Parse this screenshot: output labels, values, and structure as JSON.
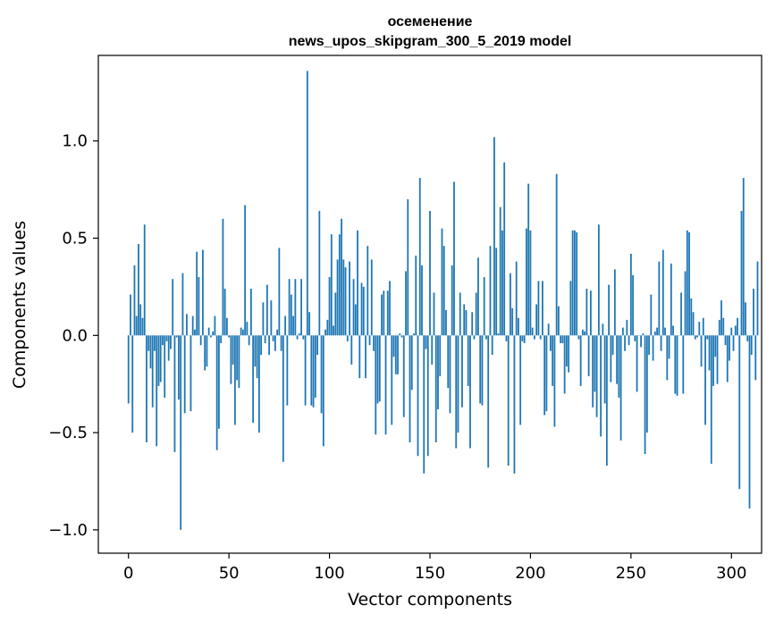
{
  "chart_data": {
    "type": "bar",
    "title": "осеменение",
    "subtitle": "news_upos_skipgram_300_5_2019 model",
    "xlabel": "Vector components",
    "ylabel": "Components values",
    "xlim": [
      -15,
      315
    ],
    "ylim": [
      -1.12,
      1.44
    ],
    "x_ticks": [
      0,
      50,
      100,
      150,
      200,
      250,
      300
    ],
    "x_tick_labels": [
      "0",
      "50",
      "100",
      "150",
      "200",
      "250",
      "300"
    ],
    "y_ticks": [
      -1.0,
      -0.5,
      0.0,
      0.5,
      1.0
    ],
    "y_tick_labels": [
      "−1.0",
      "−0.5",
      "0.0",
      "0.5",
      "1.0"
    ],
    "grid": false,
    "legend": "none",
    "bar_color": "#1f77b4",
    "values": [
      -0.35,
      0.21,
      -0.5,
      0.36,
      0.1,
      0.47,
      0.16,
      0.09,
      0.57,
      -0.55,
      -0.08,
      -0.17,
      -0.37,
      -0.08,
      -0.57,
      -0.26,
      -0.24,
      -0.05,
      -0.32,
      -0.03,
      -0.13,
      -0.07,
      0.29,
      -0.6,
      -0.01,
      -0.33,
      -1.0,
      0.32,
      -0.4,
      0.11,
      0.0,
      -0.39,
      0.1,
      0.03,
      0.43,
      0.3,
      -0.05,
      0.44,
      -0.18,
      -0.16,
      0.04,
      -0.01,
      0.02,
      0.1,
      -0.59,
      -0.48,
      -0.04,
      0.6,
      0.24,
      0.09,
      -0.01,
      -0.25,
      -0.15,
      -0.46,
      -0.23,
      -0.27,
      0.04,
      0.03,
      0.67,
      0.07,
      -0.05,
      0.24,
      -0.45,
      -0.16,
      -0.22,
      -0.5,
      -0.1,
      0.17,
      -0.04,
      0.26,
      -0.1,
      0.18,
      -0.03,
      -0.08,
      0.03,
      0.45,
      -0.08,
      -0.65,
      0.1,
      -0.36,
      0.29,
      0.21,
      0.1,
      0.29,
      -0.02,
      0.01,
      0.29,
      -0.02,
      -0.36,
      1.36,
      0.12,
      -0.36,
      -0.37,
      -0.32,
      -0.1,
      0.64,
      -0.4,
      -0.57,
      0.03,
      0.08,
      0.3,
      0.52,
      0.05,
      0.22,
      0.39,
      0.52,
      0.6,
      0.39,
      0.35,
      -0.03,
      0.38,
      -0.15,
      0.29,
      0.16,
      0.54,
      -0.22,
      0.27,
      0.25,
      -0.22,
      0.46,
      -0.05,
      0.39,
      -0.08,
      -0.51,
      -0.35,
      -0.34,
      0.21,
      0.23,
      -0.51,
      0.23,
      0.28,
      -0.46,
      -0.11,
      -0.2,
      -0.2,
      0.01,
      -0.01,
      -0.42,
      0.33,
      0.7,
      -0.55,
      -0.28,
      0.01,
      0.41,
      -0.62,
      0.81,
      0.36,
      -0.71,
      -0.07,
      -0.62,
      0.64,
      -0.15,
      0.22,
      -0.55,
      -0.38,
      -0.21,
      0.55,
      0.46,
      0.13,
      -0.27,
      -0.4,
      0.36,
      0.79,
      -0.58,
      -0.5,
      0.22,
      -0.37,
      0.16,
      0.13,
      -0.26,
      -0.58,
      0.12,
      -0.02,
      0.22,
      0.4,
      -0.35,
      -0.36,
      0.3,
      -0.02,
      -0.68,
      0.46,
      -0.1,
      1.02,
      0.45,
      0.01,
      0.66,
      0.54,
      0.89,
      -0.03,
      -0.67,
      0.32,
      0.14,
      -0.71,
      0.38,
      0.09,
      -0.46,
      -0.03,
      -0.04,
      0.55,
      0.78,
      0.54,
      0.04,
      -0.02,
      0.16,
      0.28,
      -0.02,
      0.28,
      -0.41,
      -0.39,
      0.06,
      -0.08,
      -0.26,
      -0.47,
      0.83,
      0.15,
      -0.04,
      -0.04,
      -0.3,
      -0.16,
      -0.19,
      0.28,
      0.54,
      0.54,
      0.53,
      -0.02,
      -0.26,
      0.03,
      0.02,
      0.24,
      -0.21,
      0.23,
      -0.37,
      -0.29,
      -0.42,
      0.57,
      -0.52,
      0.06,
      -0.35,
      -0.67,
      0.26,
      -0.24,
      -0.1,
      0.34,
      -0.25,
      -0.32,
      -0.54,
      0.04,
      -0.08,
      0.08,
      -0.05,
      0.42,
      0.31,
      -0.03,
      -0.29,
      0.0,
      -0.06,
      0.01,
      -0.61,
      -0.5,
      -0.1,
      0.21,
      -0.13,
      0.02,
      0.04,
      0.38,
      -0.08,
      0.44,
      0.04,
      -0.23,
      -0.12,
      0.37,
      0.05,
      -0.3,
      -0.31,
      0.0,
      0.22,
      -0.3,
      0.33,
      0.54,
      0.53,
      0.19,
      0.12,
      -0.02,
      -0.01,
      0.07,
      -0.16,
      0.09,
      -0.46,
      -0.02,
      -0.18,
      -0.66,
      -0.26,
      -0.11,
      -0.25,
      0.08,
      0.18,
      0.09,
      -0.05,
      -0.24,
      -0.13,
      0.04,
      -0.08,
      0.05,
      0.09,
      -0.79,
      0.64,
      0.81,
      0.17,
      -0.03,
      -0.89,
      -0.1,
      0.24,
      -0.23,
      0.38
    ]
  }
}
